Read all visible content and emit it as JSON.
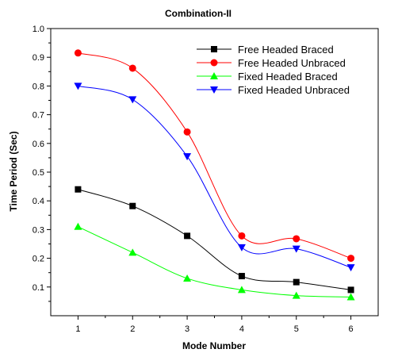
{
  "chart_data": {
    "type": "line",
    "title": "Combination-II",
    "xlabel": "Mode Number",
    "ylabel": "Time Period (Sec)",
    "xlim": [
      0.5,
      6.5
    ],
    "ylim": [
      0.0,
      1.0
    ],
    "x_ticks": [
      "1",
      "2",
      "3",
      "4",
      "5",
      "6"
    ],
    "y_ticks": [
      "0.1",
      "0.2",
      "0.3",
      "0.4",
      "0.5",
      "0.6",
      "0.7",
      "0.8",
      "0.9",
      "1.0"
    ],
    "grid": false,
    "legend_position": "top-right",
    "x": [
      1,
      2,
      3,
      4,
      5,
      6
    ],
    "series": [
      {
        "name": "Free Headed Braced",
        "color": "#000000",
        "marker": "square",
        "values": [
          0.44,
          0.382,
          0.278,
          0.138,
          0.117,
          0.09
        ]
      },
      {
        "name": "Free Headed Unbraced",
        "color": "#ff0000",
        "marker": "circle",
        "values": [
          0.915,
          0.862,
          0.64,
          0.278,
          0.268,
          0.2
        ]
      },
      {
        "name": "Fixed Headed Braced",
        "color": "#00ff00",
        "marker": "triangle-up",
        "values": [
          0.31,
          0.22,
          0.13,
          0.09,
          0.07,
          0.065
        ]
      },
      {
        "name": "Fixed Headed Unbraced",
        "color": "#0000ff",
        "marker": "triangle-down",
        "values": [
          0.8,
          0.753,
          0.555,
          0.238,
          0.233,
          0.168
        ]
      }
    ]
  }
}
